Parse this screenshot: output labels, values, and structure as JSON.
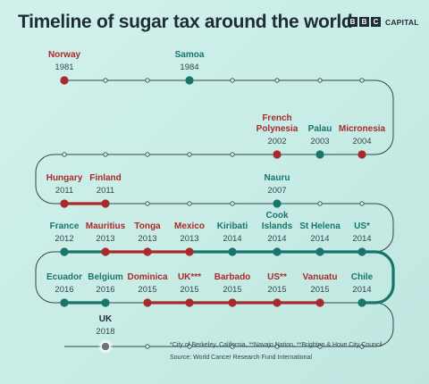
{
  "title": "Timeline of sugar tax around the world",
  "logo": {
    "letters": [
      "B",
      "B",
      "C"
    ],
    "text": "CAPITAL"
  },
  "colors": {
    "red": "#a82a2a",
    "teal": "#17756c",
    "line": "#33454b",
    "black": "#1e2d33"
  },
  "footnote": "*City of Berkeley, California, **Navajo Nation, **Brighton & Hove City Council",
  "source": "Source: World Cancer Research Fund International",
  "events": [
    {
      "name": "Norway",
      "year": "1981",
      "color": "red"
    },
    {
      "name": "Samoa",
      "year": "1984",
      "color": "teal"
    },
    {
      "name": "French\nPolynesia",
      "year": "2002",
      "color": "red"
    },
    {
      "name": "Palau",
      "year": "2003",
      "color": "teal"
    },
    {
      "name": "Micronesia",
      "year": "2004",
      "color": "red"
    },
    {
      "name": "Hungary",
      "year": "2011",
      "color": "red"
    },
    {
      "name": "Finland",
      "year": "2011",
      "color": "red"
    },
    {
      "name": "Nauru",
      "year": "2007",
      "color": "teal"
    },
    {
      "name": "France",
      "year": "2012",
      "color": "teal"
    },
    {
      "name": "Mauritius",
      "year": "2013",
      "color": "red"
    },
    {
      "name": "Tonga",
      "year": "2013",
      "color": "red"
    },
    {
      "name": "Mexico",
      "year": "2013",
      "color": "red"
    },
    {
      "name": "Kiribati",
      "year": "2014",
      "color": "teal"
    },
    {
      "name": "Cook\nIslands",
      "year": "2014",
      "color": "teal"
    },
    {
      "name": "St Helena",
      "year": "2014",
      "color": "teal"
    },
    {
      "name": "US*",
      "year": "2014",
      "color": "teal"
    },
    {
      "name": "Ecuador",
      "year": "2016",
      "color": "teal"
    },
    {
      "name": "Belgium",
      "year": "2016",
      "color": "teal"
    },
    {
      "name": "Dominica",
      "year": "2015",
      "color": "red"
    },
    {
      "name": "UK***",
      "year": "2015",
      "color": "red"
    },
    {
      "name": "Barbado",
      "year": "2015",
      "color": "red"
    },
    {
      "name": "US**",
      "year": "2015",
      "color": "red"
    },
    {
      "name": "Vanuatu",
      "year": "2015",
      "color": "red"
    },
    {
      "name": "Chile",
      "year": "2014",
      "color": "teal"
    },
    {
      "name": "UK",
      "year": "2018",
      "color": "black"
    }
  ]
}
